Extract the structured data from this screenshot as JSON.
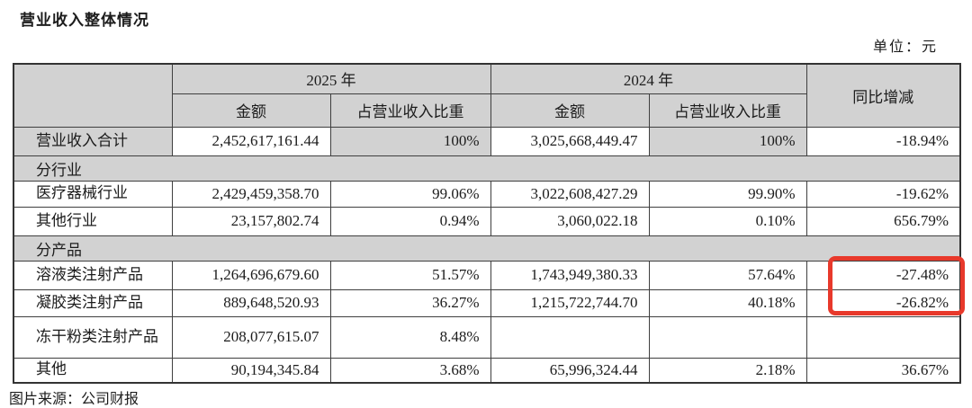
{
  "page": {
    "title": "营业收入整体情况",
    "unit_label": "单位：元",
    "caption": "图片来源：公司财报"
  },
  "colors": {
    "highlight_box": "#e8392b",
    "header_shading": "#d2d2d2",
    "border": "#3f3f3f"
  },
  "table": {
    "header": {
      "year_2025": "2025 年",
      "year_2024": "2024 年",
      "yoy": "同比增减",
      "amount": "金额",
      "share": "占营业收入比重"
    },
    "rows": [
      {
        "type": "data",
        "label": "营业收入合计",
        "a2025": "2,452,617,161.44",
        "p2025": "100%",
        "a2024": "3,025,668,449.47",
        "p2024": "100%",
        "yoy": "-18.94%",
        "shaded": [
          "label",
          "p2025",
          "p2024"
        ]
      },
      {
        "type": "section",
        "label": "分行业"
      },
      {
        "type": "data",
        "label": "医疗器械行业",
        "a2025": "2,429,459,358.70",
        "p2025": "99.06%",
        "a2024": "3,022,608,427.29",
        "p2024": "99.90%",
        "yoy": "-19.62%"
      },
      {
        "type": "data",
        "label": "其他行业",
        "a2025": "23,157,802.74",
        "p2025": "0.94%",
        "a2024": "3,060,022.18",
        "p2024": "0.10%",
        "yoy": "656.79%"
      },
      {
        "type": "section",
        "label": "分产品"
      },
      {
        "type": "data",
        "label": "溶液类注射产品",
        "a2025": "1,264,696,679.60",
        "p2025": "51.57%",
        "a2024": "1,743,949,380.33",
        "p2024": "57.64%",
        "yoy": "-27.48%",
        "highlighted": true
      },
      {
        "type": "data",
        "label": "凝胶类注射产品",
        "a2025": "889,648,520.93",
        "p2025": "36.27%",
        "a2024": "1,215,722,744.70",
        "p2024": "40.18%",
        "yoy": "-26.82%",
        "highlighted": true
      },
      {
        "type": "data",
        "label": "冻干粉类注射产品",
        "a2025": "208,077,615.07",
        "p2025": "8.48%",
        "a2024": "",
        "p2024": "",
        "yoy": ""
      },
      {
        "type": "data",
        "label": "其他",
        "a2025": "90,194,345.84",
        "p2025": "3.68%",
        "a2024": "65,996,324.44",
        "p2024": "2.18%",
        "yoy": "36.67%"
      }
    ]
  }
}
